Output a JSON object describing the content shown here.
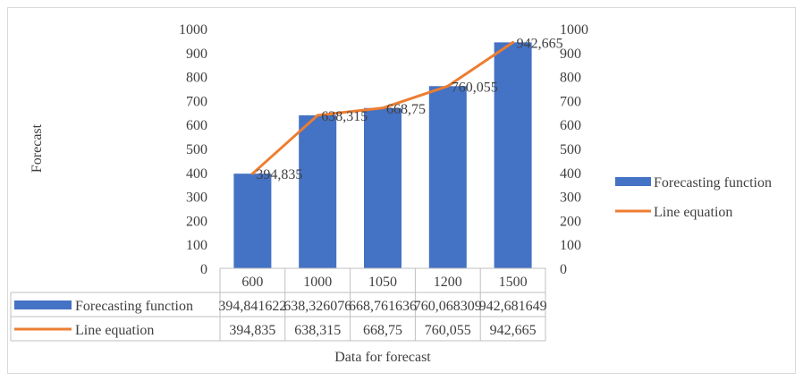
{
  "chart_data": {
    "type": "bar",
    "title": "",
    "xlabel": "Data for forecast",
    "ylabel": "Forecast",
    "categories": [
      "600",
      "1000",
      "1050",
      "1200",
      "1500"
    ],
    "ylim": [
      0,
      1000
    ],
    "y_ticks": [
      "0",
      "100",
      "200",
      "300",
      "400",
      "500",
      "600",
      "700",
      "800",
      "900",
      "1000"
    ],
    "y2lim": [
      0,
      1000
    ],
    "y2_ticks": [
      "0",
      "100",
      "200",
      "300",
      "400",
      "500",
      "600",
      "700",
      "800",
      "900",
      "1000"
    ],
    "grid": false,
    "legend_position": "right",
    "series": [
      {
        "name": "Forecasting function",
        "kind": "bar",
        "color": "#4472c4",
        "values": [
          394.841622,
          638.326076,
          668.761636,
          760.068309,
          942.681649
        ],
        "table_labels": [
          "394,841622",
          "638,326076",
          "668,761636",
          "760,068309",
          "942,681649"
        ]
      },
      {
        "name": "Line equation",
        "kind": "line",
        "color": "#ed7d31",
        "values": [
          394.835,
          638.315,
          668.75,
          760.055,
          942.665
        ],
        "data_labels": [
          "394,835",
          "638,315",
          "668,75",
          "760,055",
          "942,665"
        ],
        "table_labels": [
          "394,835",
          "638,315",
          "668,75",
          "760,055",
          "942,665"
        ]
      }
    ]
  }
}
